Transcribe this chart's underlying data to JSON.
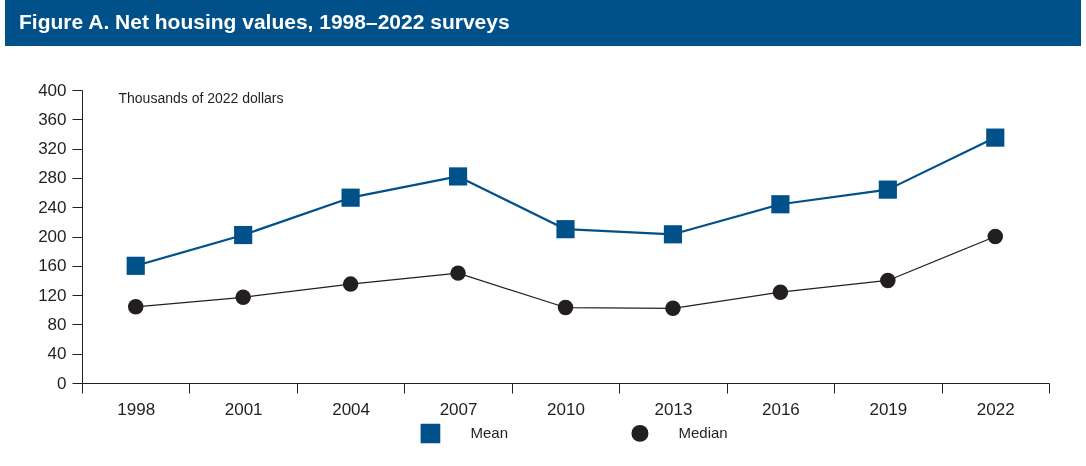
{
  "chart_data": {
    "type": "line",
    "title": "Figure A. Net housing values, 1998–2022 surveys",
    "ylabel": "Thousands of 2022 dollars",
    "categories": [
      "1998",
      "2001",
      "2004",
      "2007",
      "2010",
      "2013",
      "2016",
      "2019",
      "2022"
    ],
    "series": [
      {
        "name": "Mean",
        "color": "#00508a",
        "marker": "square",
        "values": [
          160,
          202,
          253,
          282,
          210,
          203,
          244,
          264,
          335
        ]
      },
      {
        "name": "Median",
        "color": "#231f20",
        "marker": "circle",
        "values": [
          104,
          117,
          135,
          150,
          103,
          102,
          124,
          140,
          200
        ]
      }
    ],
    "ylim": [
      0,
      400
    ],
    "yticks": [
      0,
      40,
      80,
      120,
      160,
      200,
      240,
      280,
      320,
      360,
      400
    ],
    "grid": false,
    "legend": "bottom"
  }
}
